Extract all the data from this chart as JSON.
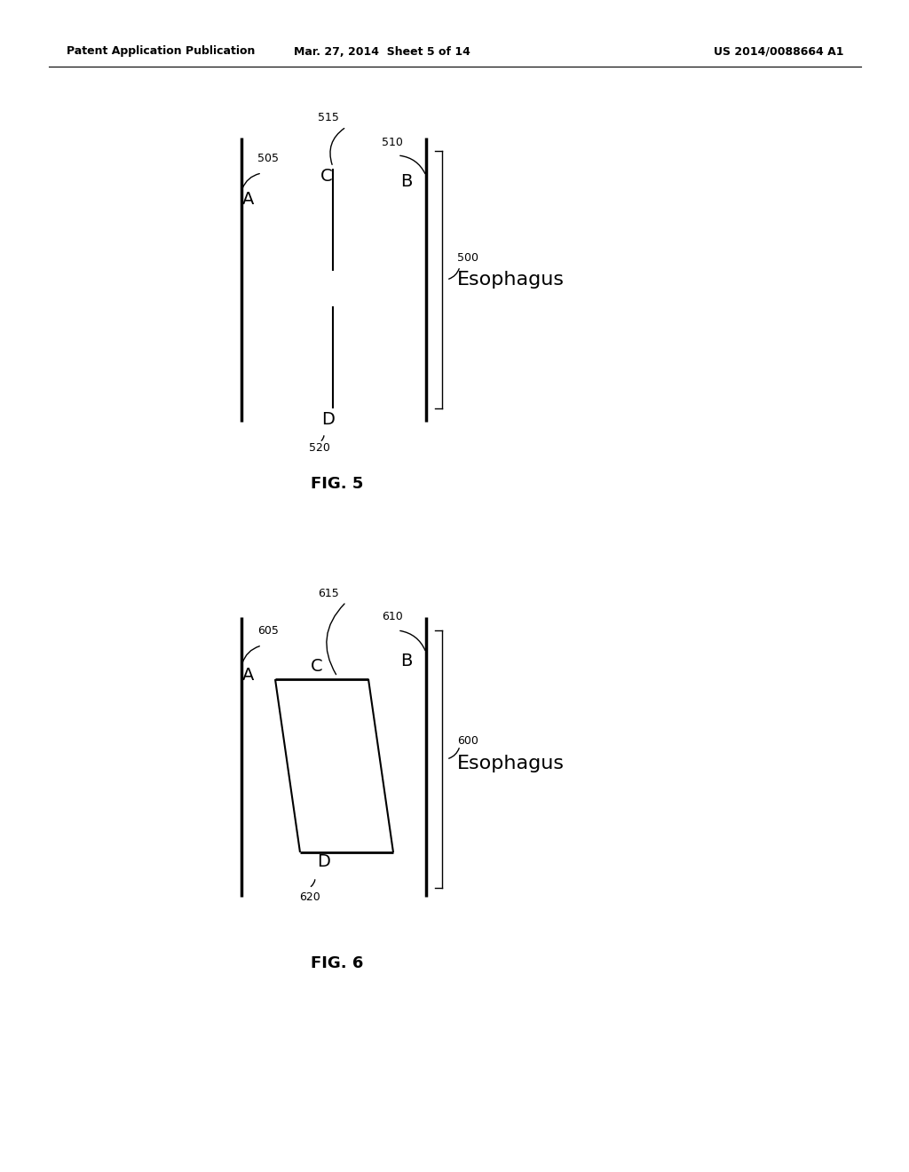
{
  "background_color": "#ffffff",
  "header_left": "Patent Application Publication",
  "header_mid": "Mar. 27, 2014  Sheet 5 of 14",
  "header_right": "US 2014/0088664 A1",
  "fig5_caption": "FIG. 5",
  "fig6_caption": "FIG. 6"
}
